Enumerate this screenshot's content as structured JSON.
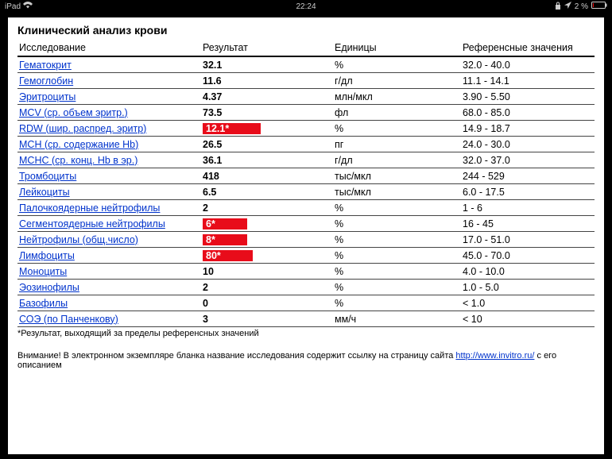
{
  "statusbar": {
    "carrier": "iPad",
    "wifi_icon": "◉",
    "time": "22:24",
    "lock_icon": "🔒",
    "loc_icon": "➤",
    "battery_text": "2 %",
    "battery_icon": "▢"
  },
  "report": {
    "title": "Клинический анализ крови",
    "headers": {
      "name": "Исследование",
      "result": "Результат",
      "units": "Единицы",
      "reference": "Референсные значения"
    },
    "rows": [
      {
        "name": "Гематокрит",
        "result": "32.1",
        "flagged": false,
        "units": "%",
        "ref": "32.0 - 40.0"
      },
      {
        "name": "Гемоглобин",
        "result": "11.6",
        "flagged": false,
        "units": "г/дл",
        "ref": "11.1 - 14.1"
      },
      {
        "name": "Эритроциты",
        "result": "4.37",
        "flagged": false,
        "units": "млн/мкл",
        "ref": "3.90 - 5.50"
      },
      {
        "name": "MCV (ср. объем эритр.)",
        "result": "73.5",
        "flagged": false,
        "units": "фл",
        "ref": "68.0 - 85.0"
      },
      {
        "name": "RDW (шир. распред. эритр)",
        "result": "12.1*",
        "flagged": true,
        "units": "%",
        "ref": "14.9 - 18.7"
      },
      {
        "name": "MCH (ср. содержание Hb)",
        "result": "26.5",
        "flagged": false,
        "units": "пг",
        "ref": "24.0 - 30.0"
      },
      {
        "name": "МСНС (ср. конц. Hb в эр.)",
        "result": "36.1",
        "flagged": false,
        "units": "г/дл",
        "ref": "32.0 - 37.0"
      },
      {
        "name": "Тромбоциты",
        "result": "418",
        "flagged": false,
        "units": "тыс/мкл",
        "ref": "244 - 529"
      },
      {
        "name": "Лейкоциты",
        "result": "6.5",
        "flagged": false,
        "units": "тыс/мкл",
        "ref": "6.0 - 17.5"
      },
      {
        "name": "Палочкоядерные нейтрофилы",
        "result": "2",
        "flagged": false,
        "units": "%",
        "ref": "1 - 6"
      },
      {
        "name": "Сегментоядерные нейтрофилы",
        "result": "6*",
        "flagged": true,
        "units": "%",
        "ref": "16 - 45"
      },
      {
        "name": "Нейтрофилы (общ.число)",
        "result": "8*",
        "flagged": true,
        "units": "%",
        "ref": "17.0 - 51.0"
      },
      {
        "name": "Лимфоциты",
        "result": "80*",
        "flagged": true,
        "units": "%",
        "ref": "45.0 - 70.0"
      },
      {
        "name": "Моноциты",
        "result": "10",
        "flagged": false,
        "units": "%",
        "ref": "4.0 - 10.0"
      },
      {
        "name": "Эозинофилы",
        "result": "2",
        "flagged": false,
        "units": "%",
        "ref": "1.0 - 5.0"
      },
      {
        "name": "Базофилы",
        "result": "0",
        "flagged": false,
        "units": "%",
        "ref": "< 1.0"
      },
      {
        "name": "СОЭ (по Панченкову)",
        "result": "3",
        "flagged": false,
        "units": "мм/ч",
        "ref": "< 10"
      }
    ],
    "footnote": "*Результат, выходящий за пределы референсных значений",
    "note_prefix": "Внимание! В электронном экземпляре бланка название исследования содержит ссылку на страницу сайта ",
    "note_link_text": "http://www.invitro.ru/",
    "note_suffix": " с его описанием",
    "colors": {
      "link": "#0033cc",
      "flag_bg": "#e80c1a",
      "flag_fg": "#ffffff",
      "row_border": "#444444",
      "header_border": "#000000",
      "page_bg": "#ffffff",
      "outer_bg": "#000000"
    }
  }
}
